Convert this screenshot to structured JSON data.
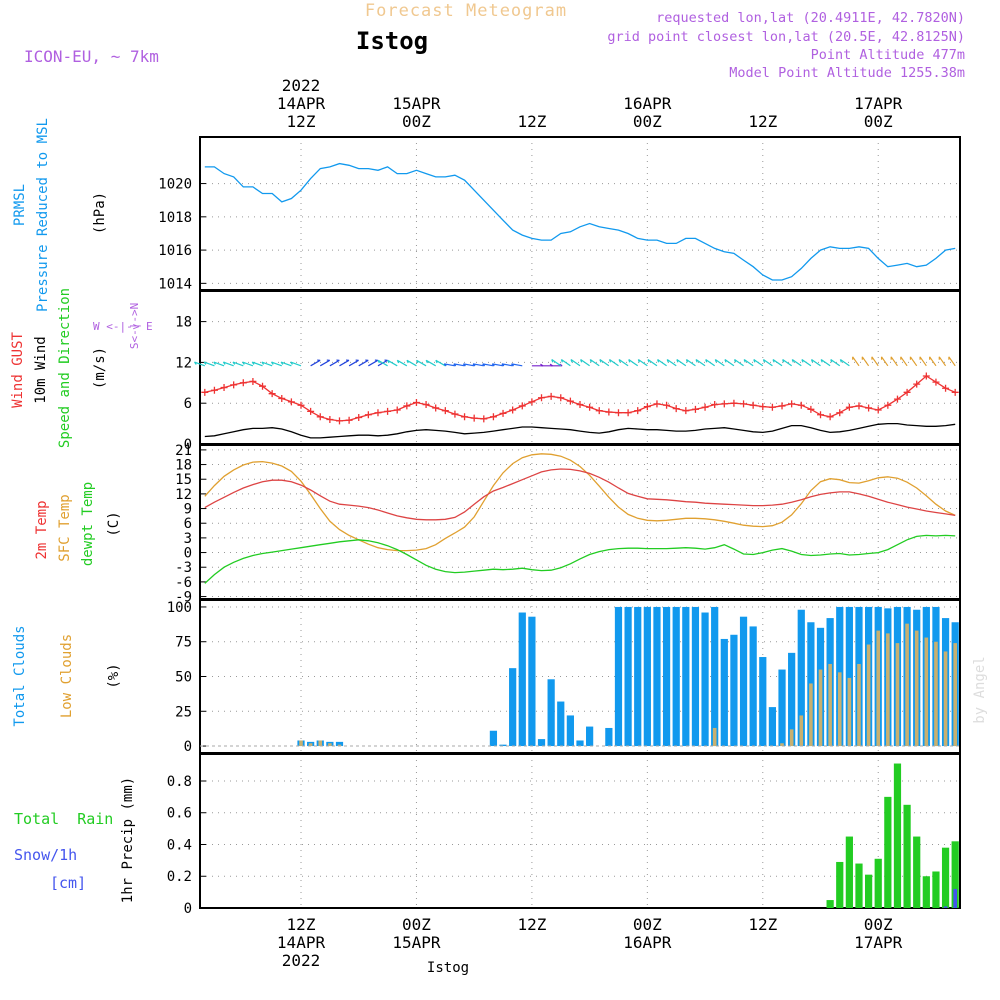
{
  "header": {
    "meteogram_title": "Forecast Meteogram",
    "station_name": "Istog",
    "model_name": "ICON-EU, ~ 7km",
    "requested_lonlat": "requested lon,lat (20.4911E, 42.7820N)",
    "grid_lonlat": "grid point closest lon,lat (20.5E, 42.8125N)",
    "point_altitude": "Point Altitude 477m",
    "model_altitude": "Model Point Altitude 1255.38m",
    "credit": "by Angel",
    "footer_station": "Istog"
  },
  "colors": {
    "pressure": "#1199ee",
    "gust": "#ee3333",
    "wind": "#000000",
    "temp2m": "#dd4444",
    "sfctemp": "#e0a030",
    "dewpoint": "#22cc22",
    "total_clouds": "#1199ee",
    "low_clouds": "#c8b070",
    "rain": "#22cc22",
    "snow": "#4455ee",
    "info_text": "#b060e0",
    "title_text": "#f0c890"
  },
  "time_axis": {
    "top_labels": [
      {
        "hour": 12,
        "lines": [
          "2022",
          "14APR",
          "12Z"
        ]
      },
      {
        "hour": 24,
        "lines": [
          "15APR",
          "00Z"
        ]
      },
      {
        "hour": 36,
        "lines": [
          "12Z"
        ]
      },
      {
        "hour": 48,
        "lines": [
          "16APR",
          "00Z"
        ]
      },
      {
        "hour": 60,
        "lines": [
          "12Z"
        ]
      },
      {
        "hour": 72,
        "lines": [
          "17APR",
          "00Z"
        ]
      }
    ],
    "bottom_labels": [
      {
        "hour": 12,
        "lines": [
          "12Z",
          "14APR",
          "2022"
        ]
      },
      {
        "hour": 24,
        "lines": [
          "00Z",
          "15APR"
        ]
      },
      {
        "hour": 36,
        "lines": [
          "12Z"
        ]
      },
      {
        "hour": 48,
        "lines": [
          "00Z",
          "16APR"
        ]
      },
      {
        "hour": 60,
        "lines": [
          "12Z"
        ]
      },
      {
        "hour": 72,
        "lines": [
          "00Z",
          "17APR"
        ]
      }
    ]
  },
  "panel_labels": {
    "pressure": {
      "left": "PRMSL",
      "right": "Pressure Reduced to MSL",
      "unit": "(hPa)"
    },
    "wind": {
      "gust": "Wind GUST",
      "wind": "10m Wind",
      "dir": "Speed and Direction",
      "unit": "(m/s)",
      "compass_h": "W <-|-> E",
      "compass_v": "S<-|->N"
    },
    "temp": {
      "t2m": "2m Temp",
      "sfc": "SFC Temp",
      "dew": "dewpt Temp",
      "unit": "(C)"
    },
    "clouds": {
      "total": "Total Clouds",
      "low": "Low Clouds",
      "unit": "(%)"
    },
    "precip": {
      "rain": "Total  Rain",
      "snow": "Snow/1h",
      "snow_unit": "[cm]",
      "axis": "1hr Precip (mm)"
    }
  },
  "chart_data": [
    {
      "type": "line",
      "name": "pressure",
      "x": [
        2,
        3,
        4,
        5,
        6,
        7,
        8,
        9,
        10,
        11,
        12,
        13,
        14,
        15,
        16,
        17,
        18,
        19,
        20,
        21,
        22,
        23,
        24,
        25,
        26,
        27,
        28,
        29,
        30,
        31,
        32,
        33,
        34,
        35,
        36,
        37,
        38,
        39,
        40,
        41,
        42,
        43,
        44,
        45,
        46,
        47,
        48,
        49,
        50,
        51,
        52,
        53,
        54,
        55,
        56,
        57,
        58,
        59,
        60,
        61,
        62,
        63,
        64,
        65,
        66,
        67,
        68,
        69,
        70,
        71,
        72,
        73,
        74,
        75,
        76,
        77,
        78,
        79,
        80
      ],
      "series": [
        {
          "values": [
            1021.0,
            1021.0,
            1020.6,
            1020.4,
            1019.8,
            1019.8,
            1019.4,
            1019.4,
            1018.9,
            1019.1,
            1019.6,
            1020.3,
            1020.9,
            1021.0,
            1021.2,
            1021.1,
            1020.9,
            1020.9,
            1020.8,
            1021.0,
            1020.6,
            1020.6,
            1020.8,
            1020.6,
            1020.4,
            1020.4,
            1020.5,
            1020.2,
            1019.6,
            1019.0,
            1018.4,
            1017.8,
            1017.2,
            1016.9,
            1016.7,
            1016.6,
            1016.6,
            1017.0,
            1017.1,
            1017.4,
            1017.6,
            1017.4,
            1017.3,
            1017.2,
            1017.0,
            1016.7,
            1016.6,
            1016.6,
            1016.4,
            1016.4,
            1016.7,
            1016.7,
            1016.4,
            1016.1,
            1015.9,
            1015.8,
            1015.4,
            1015.0,
            1014.5,
            1014.2,
            1014.2,
            1014.4,
            1014.9,
            1015.5,
            1016.0,
            1016.2,
            1016.1,
            1016.1,
            1016.2,
            1016.1,
            1015.5,
            1015.0,
            1015.1,
            1015.2,
            1015.0,
            1015.1,
            1015.5,
            1016.0,
            1016.1
          ]
        }
      ],
      "ylim": [
        1013.6,
        1022.8
      ],
      "yticks": [
        1014,
        1016,
        1018,
        1020
      ]
    },
    {
      "type": "line",
      "name": "wind",
      "x": [
        2,
        3,
        4,
        5,
        6,
        7,
        8,
        9,
        10,
        11,
        12,
        13,
        14,
        15,
        16,
        17,
        18,
        19,
        20,
        21,
        22,
        23,
        24,
        25,
        26,
        27,
        28,
        29,
        30,
        31,
        32,
        33,
        34,
        35,
        36,
        37,
        38,
        39,
        40,
        41,
        42,
        43,
        44,
        45,
        46,
        47,
        48,
        49,
        50,
        51,
        52,
        53,
        54,
        55,
        56,
        57,
        58,
        59,
        60,
        61,
        62,
        63,
        64,
        65,
        66,
        67,
        68,
        69,
        70,
        71,
        72,
        73,
        74,
        75,
        76,
        77,
        78,
        79,
        80
      ],
      "ylim": [
        0,
        22.5
      ],
      "yticks": [
        0,
        6,
        12,
        18
      ],
      "series": [
        {
          "values": [
            7.6,
            7.9,
            8.3,
            8.7,
            9.0,
            9.2,
            8.5,
            7.4,
            6.7,
            6.2,
            5.7,
            4.8,
            4.0,
            3.6,
            3.4,
            3.5,
            3.9,
            4.3,
            4.6,
            4.8,
            5.0,
            5.6,
            6.1,
            5.8,
            5.3,
            4.9,
            4.4,
            4.0,
            3.8,
            3.7,
            4.0,
            4.5,
            5.0,
            5.6,
            6.2,
            6.8,
            7.0,
            6.8,
            6.3,
            5.8,
            5.4,
            4.9,
            4.7,
            4.6,
            4.6,
            4.9,
            5.5,
            5.9,
            5.7,
            5.2,
            4.9,
            5.1,
            5.4,
            5.8,
            5.9,
            6.0,
            5.9,
            5.7,
            5.5,
            5.4,
            5.6,
            5.9,
            5.7,
            5.1,
            4.3,
            4.0,
            4.6,
            5.4,
            5.6,
            5.3,
            5.0,
            5.7,
            6.6,
            7.6,
            8.8,
            10.0,
            9.1,
            8.2,
            7.6
          ]
        },
        {
          "values": [
            1.1,
            1.2,
            1.5,
            1.8,
            2.1,
            2.3,
            2.3,
            2.4,
            2.2,
            1.8,
            1.3,
            0.9,
            0.9,
            1.0,
            1.1,
            1.2,
            1.3,
            1.3,
            1.2,
            1.3,
            1.5,
            1.8,
            2.0,
            2.1,
            2.0,
            1.9,
            1.7,
            1.5,
            1.6,
            1.7,
            1.9,
            2.1,
            2.3,
            2.5,
            2.5,
            2.4,
            2.3,
            2.2,
            2.1,
            1.9,
            1.7,
            1.6,
            1.8,
            2.1,
            2.3,
            2.2,
            2.1,
            2.1,
            2.0,
            1.9,
            1.9,
            2.0,
            2.2,
            2.3,
            2.4,
            2.2,
            2.0,
            1.8,
            1.7,
            1.9,
            2.3,
            2.7,
            2.7,
            2.4,
            2.0,
            1.7,
            1.8,
            2.0,
            2.3,
            2.6,
            2.9,
            3.0,
            3.0,
            2.8,
            2.7,
            2.6,
            2.6,
            2.7,
            2.9
          ]
        }
      ]
    },
    {
      "type": "line",
      "name": "temperature",
      "x": [
        2,
        3,
        4,
        5,
        6,
        7,
        8,
        9,
        10,
        11,
        12,
        13,
        14,
        15,
        16,
        17,
        18,
        19,
        20,
        21,
        22,
        23,
        24,
        25,
        26,
        27,
        28,
        29,
        30,
        31,
        32,
        33,
        34,
        35,
        36,
        37,
        38,
        39,
        40,
        41,
        42,
        43,
        44,
        45,
        46,
        47,
        48,
        49,
        50,
        51,
        52,
        53,
        54,
        55,
        56,
        57,
        58,
        59,
        60,
        61,
        62,
        63,
        64,
        65,
        66,
        67,
        68,
        69,
        70,
        71,
        72,
        73,
        74,
        75,
        76,
        77,
        78,
        79,
        80
      ],
      "ylim": [
        -9.5,
        22
      ],
      "yticks": [
        -9,
        -6,
        -3,
        0,
        3,
        6,
        9,
        12,
        15,
        18,
        21
      ],
      "series": [
        {
          "values": [
            9.2,
            10.3,
            11.3,
            12.3,
            13.2,
            13.9,
            14.5,
            14.8,
            14.8,
            14.5,
            13.8,
            12.8,
            11.6,
            10.5,
            9.9,
            9.7,
            9.5,
            9.2,
            8.7,
            8.1,
            7.5,
            7.1,
            6.8,
            6.7,
            6.7,
            6.8,
            7.2,
            8.3,
            9.9,
            11.4,
            12.6,
            13.3,
            14.1,
            14.9,
            15.7,
            16.5,
            16.9,
            17.1,
            17.0,
            16.7,
            16.2,
            15.4,
            14.4,
            13.2,
            12.1,
            11.5,
            11.0,
            10.9,
            10.8,
            10.6,
            10.4,
            10.3,
            10.1,
            10.0,
            9.9,
            9.8,
            9.7,
            9.6,
            9.6,
            9.7,
            9.9,
            10.3,
            10.8,
            11.4,
            11.9,
            12.2,
            12.4,
            12.4,
            12.0,
            11.5,
            10.9,
            10.3,
            9.8,
            9.3,
            8.9,
            8.5,
            8.2,
            7.9,
            7.6
          ]
        },
        {
          "values": [
            11.5,
            13.7,
            15.6,
            16.9,
            17.9,
            18.5,
            18.6,
            18.3,
            17.7,
            16.6,
            14.6,
            11.9,
            9.0,
            6.4,
            4.7,
            3.5,
            2.6,
            1.7,
            1.0,
            0.6,
            0.4,
            0.4,
            0.5,
            0.8,
            1.6,
            2.9,
            4.0,
            5.2,
            7.3,
            10.5,
            13.7,
            16.3,
            18.2,
            19.4,
            20.0,
            20.2,
            20.1,
            19.7,
            18.9,
            17.6,
            15.8,
            13.6,
            11.3,
            9.3,
            7.8,
            7.0,
            6.6,
            6.5,
            6.6,
            6.8,
            7.0,
            7.0,
            6.9,
            6.7,
            6.4,
            6.0,
            5.6,
            5.4,
            5.3,
            5.5,
            6.2,
            7.7,
            10.0,
            12.7,
            14.5,
            15.1,
            14.9,
            14.3,
            14.2,
            14.7,
            15.3,
            15.5,
            15.2,
            14.4,
            13.2,
            11.6,
            9.9,
            8.5,
            7.6
          ]
        },
        {
          "values": [
            -6.3,
            -4.5,
            -3.0,
            -2.0,
            -1.2,
            -0.6,
            -0.2,
            0.1,
            0.4,
            0.7,
            1.0,
            1.3,
            1.6,
            1.9,
            2.2,
            2.4,
            2.6,
            2.4,
            2.0,
            1.4,
            0.6,
            -0.4,
            -1.5,
            -2.6,
            -3.4,
            -3.9,
            -4.1,
            -4.0,
            -3.8,
            -3.6,
            -3.4,
            -3.5,
            -3.4,
            -3.2,
            -3.5,
            -3.7,
            -3.6,
            -3.1,
            -2.3,
            -1.3,
            -0.4,
            0.2,
            0.6,
            0.8,
            0.9,
            0.9,
            0.8,
            0.8,
            0.8,
            0.9,
            1.0,
            0.9,
            0.7,
            1.0,
            1.6,
            0.7,
            -0.3,
            -0.4,
            0.0,
            0.5,
            0.8,
            0.3,
            -0.4,
            -0.6,
            -0.5,
            -0.3,
            -0.2,
            -0.5,
            -0.4,
            -0.2,
            0.0,
            0.6,
            1.6,
            2.6,
            3.3,
            3.5,
            3.4,
            3.5,
            3.4
          ]
        }
      ]
    },
    {
      "type": "bar",
      "name": "clouds",
      "x": [
        12,
        13,
        14,
        15,
        16,
        32,
        33,
        34,
        35,
        36,
        37,
        38,
        39,
        40,
        41,
        42,
        43,
        44,
        45,
        46,
        47,
        48,
        49,
        50,
        51,
        52,
        53,
        54,
        55,
        56,
        57,
        58,
        59,
        60,
        61,
        62,
        63,
        64,
        65,
        66,
        67,
        68,
        69,
        70,
        71,
        72,
        73,
        74,
        75,
        76,
        77,
        78,
        79,
        80
      ],
      "ylim": [
        -5,
        105
      ],
      "yticks": [
        0,
        25,
        50,
        75,
        100
      ],
      "series": [
        {
          "values": [
            4,
            3,
            4,
            3,
            3,
            11,
            1,
            56,
            96,
            93,
            5,
            48,
            32,
            22,
            4,
            14,
            0,
            13,
            100,
            100,
            100,
            100,
            100,
            100,
            100,
            100,
            100,
            96,
            100,
            77,
            80,
            93,
            86,
            64,
            28,
            55,
            67,
            98,
            89,
            85,
            92,
            100,
            100,
            100,
            100,
            100,
            99,
            100,
            100,
            98,
            100,
            100,
            92,
            89
          ]
        },
        {
          "values": [
            4,
            2,
            4,
            2,
            1,
            0,
            0,
            0,
            0,
            0,
            0,
            0,
            0,
            0,
            0,
            0,
            0,
            0,
            0,
            0,
            0,
            0,
            0,
            0,
            0,
            0,
            0,
            0,
            13,
            0,
            0,
            0,
            0,
            0,
            0,
            2,
            12,
            22,
            45,
            55,
            59,
            53,
            49,
            59,
            73,
            83,
            81,
            74,
            88,
            83,
            78,
            75,
            68,
            74
          ]
        }
      ]
    },
    {
      "type": "bar",
      "name": "precip",
      "x": [
        67,
        68,
        69,
        70,
        71,
        72,
        73,
        74,
        75,
        76,
        77,
        78,
        79,
        80
      ],
      "ylim": [
        0,
        0.97
      ],
      "yticks": [
        0,
        0.2,
        0.4,
        0.6,
        0.8
      ],
      "series": [
        {
          "values": [
            0.05,
            0.29,
            0.45,
            0.28,
            0.21,
            0.31,
            0.7,
            0.91,
            0.65,
            0.45,
            0.2,
            0.23,
            0.38,
            0.42
          ]
        },
        {
          "values": [
            0,
            0,
            0,
            0,
            0,
            0,
            0,
            0,
            0,
            0,
            0,
            0,
            0.01,
            0.12
          ]
        }
      ]
    }
  ]
}
